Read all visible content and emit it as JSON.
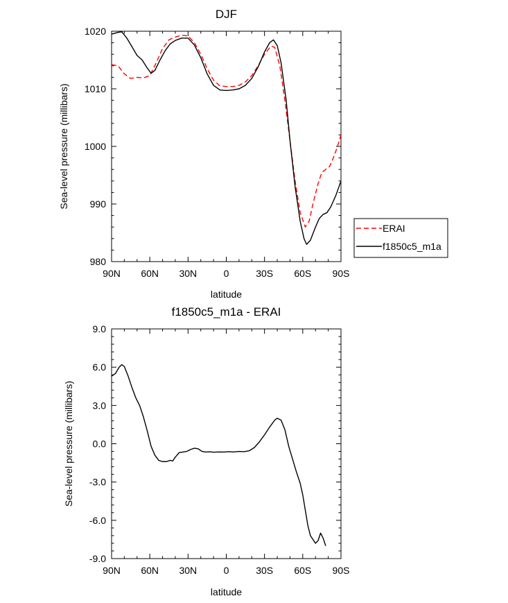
{
  "chart_data": [
    {
      "type": "line",
      "title": "DJF",
      "xlabel": "latitude",
      "ylabel": "Sea-level pressure (millibars)",
      "xlim": [
        90,
        -90
      ],
      "ylim": [
        980,
        1020
      ],
      "x_ticks": [
        {
          "value": 90,
          "label": "90N"
        },
        {
          "value": 60,
          "label": "60N"
        },
        {
          "value": 30,
          "label": "30N"
        },
        {
          "value": 0,
          "label": "0"
        },
        {
          "value": -30,
          "label": "30S"
        },
        {
          "value": -60,
          "label": "60S"
        },
        {
          "value": -90,
          "label": "90S"
        }
      ],
      "y_ticks": [
        {
          "value": 1020,
          "label": "1020"
        },
        {
          "value": 1010,
          "label": "1010"
        },
        {
          "value": 1000,
          "label": "1000"
        },
        {
          "value": 990,
          "label": "990"
        },
        {
          "value": 980,
          "label": "980"
        }
      ],
      "legend_position": "right",
      "series": [
        {
          "name": "ERAI",
          "color": "#ff0000",
          "dash": "dashed",
          "points": [
            [
              90,
              1014.2
            ],
            [
              85,
              1014
            ],
            [
              80,
              1012.6
            ],
            [
              75,
              1011.8
            ],
            [
              70,
              1012
            ],
            [
              65,
              1011.9
            ],
            [
              60,
              1012.3
            ],
            [
              55,
              1014.5
            ],
            [
              50,
              1017
            ],
            [
              45,
              1018.5
            ],
            [
              40,
              1019
            ],
            [
              35,
              1019.3
            ],
            [
              30,
              1019.2
            ],
            [
              25,
              1018
            ],
            [
              20,
              1016
            ],
            [
              15,
              1013.5
            ],
            [
              10,
              1011.5
            ],
            [
              5,
              1010.5
            ],
            [
              0,
              1010.4
            ],
            [
              -5,
              1010.4
            ],
            [
              -10,
              1010.6
            ],
            [
              -15,
              1011.2
            ],
            [
              -20,
              1012.3
            ],
            [
              -25,
              1014
            ],
            [
              -30,
              1016
            ],
            [
              -35,
              1017.4
            ],
            [
              -38,
              1017.2
            ],
            [
              -42,
              1014
            ],
            [
              -46,
              1008
            ],
            [
              -50,
              1001
            ],
            [
              -54,
              994
            ],
            [
              -58,
              988.5
            ],
            [
              -62,
              986
            ],
            [
              -65,
              987
            ],
            [
              -68,
              990
            ],
            [
              -72,
              993.5
            ],
            [
              -75,
              995.5
            ],
            [
              -78,
              996
            ],
            [
              -81,
              996.5
            ],
            [
              -84,
              998
            ],
            [
              -87,
              999.8
            ],
            [
              -90,
              1002
            ]
          ]
        },
        {
          "name": "f1850c5_m1a",
          "color": "#000000",
          "dash": "solid",
          "points": [
            [
              90,
              1019.5
            ],
            [
              85,
              1019.8
            ],
            [
              82,
              1019.9
            ],
            [
              78,
              1018.8
            ],
            [
              74,
              1017.3
            ],
            [
              70,
              1015.8
            ],
            [
              66,
              1015
            ],
            [
              62,
              1013.6
            ],
            [
              59,
              1012.7
            ],
            [
              56,
              1013.2
            ],
            [
              52,
              1015
            ],
            [
              48,
              1016.6
            ],
            [
              44,
              1017.8
            ],
            [
              40,
              1018.4
            ],
            [
              35,
              1018.8
            ],
            [
              30,
              1018.8
            ],
            [
              25,
              1017.6
            ],
            [
              20,
              1015.4
            ],
            [
              15,
              1012.6
            ],
            [
              10,
              1010.6
            ],
            [
              5,
              1009.8
            ],
            [
              0,
              1009.7
            ],
            [
              -5,
              1009.8
            ],
            [
              -10,
              1010
            ],
            [
              -15,
              1010.6
            ],
            [
              -20,
              1011.8
            ],
            [
              -25,
              1013.8
            ],
            [
              -30,
              1016.4
            ],
            [
              -34,
              1018
            ],
            [
              -37,
              1018.5
            ],
            [
              -40,
              1017.5
            ],
            [
              -43,
              1014.5
            ],
            [
              -47,
              1008
            ],
            [
              -50,
              1001
            ],
            [
              -54,
              993
            ],
            [
              -58,
              987
            ],
            [
              -61,
              984
            ],
            [
              -63,
              983
            ],
            [
              -66,
              983.7
            ],
            [
              -70,
              986
            ],
            [
              -73,
              987.5
            ],
            [
              -76,
              988.2
            ],
            [
              -79,
              988.5
            ],
            [
              -82,
              989.5
            ],
            [
              -86,
              991.5
            ],
            [
              -90,
              994
            ]
          ]
        }
      ]
    },
    {
      "type": "line",
      "title": "f1850c5_m1a - ERAI",
      "xlabel": "latitude",
      "ylabel": "Sea-level pressure (millibars)",
      "xlim": [
        90,
        -90
      ],
      "ylim": [
        -9,
        9
      ],
      "x_ticks": [
        {
          "value": 90,
          "label": "90N"
        },
        {
          "value": 60,
          "label": "60N"
        },
        {
          "value": 30,
          "label": "30N"
        },
        {
          "value": 0,
          "label": "0"
        },
        {
          "value": -30,
          "label": "30S"
        },
        {
          "value": -60,
          "label": "60S"
        },
        {
          "value": -90,
          "label": "90S"
        }
      ],
      "y_ticks": [
        {
          "value": 9,
          "label": "9.0"
        },
        {
          "value": 6,
          "label": "6.0"
        },
        {
          "value": 3,
          "label": "3.0"
        },
        {
          "value": 0,
          "label": "0.0"
        },
        {
          "value": -3,
          "label": "-3.0"
        },
        {
          "value": -6,
          "label": "-6.0"
        },
        {
          "value": -9,
          "label": "-9.0"
        }
      ],
      "series": [
        {
          "color": "#000000",
          "dash": "solid",
          "points": [
            [
              90,
              5.3
            ],
            [
              87,
              5.5
            ],
            [
              84,
              6
            ],
            [
              82,
              6.2
            ],
            [
              80,
              6.05
            ],
            [
              77,
              5.3
            ],
            [
              74,
              4.4
            ],
            [
              71,
              3.6
            ],
            [
              68,
              3
            ],
            [
              65,
              2.1
            ],
            [
              62,
              1
            ],
            [
              59,
              -0.2
            ],
            [
              56,
              -0.9
            ],
            [
              53,
              -1.3
            ],
            [
              50,
              -1.4
            ],
            [
              47,
              -1.4
            ],
            [
              44,
              -1.3
            ],
            [
              42,
              -1.35
            ],
            [
              40,
              -1.05
            ],
            [
              37,
              -0.7
            ],
            [
              34,
              -0.65
            ],
            [
              31,
              -0.6
            ],
            [
              28,
              -0.45
            ],
            [
              25,
              -0.35
            ],
            [
              22,
              -0.4
            ],
            [
              19,
              -0.6
            ],
            [
              16,
              -0.65
            ],
            [
              13,
              -0.63
            ],
            [
              10,
              -0.66
            ],
            [
              6,
              -0.64
            ],
            [
              2,
              -0.65
            ],
            [
              -2,
              -0.62
            ],
            [
              -6,
              -0.64
            ],
            [
              -10,
              -0.6
            ],
            [
              -14,
              -0.62
            ],
            [
              -18,
              -0.55
            ],
            [
              -22,
              -0.3
            ],
            [
              -26,
              0.15
            ],
            [
              -30,
              0.7
            ],
            [
              -34,
              1.3
            ],
            [
              -38,
              1.85
            ],
            [
              -40,
              2
            ],
            [
              -43,
              1.85
            ],
            [
              -46,
              1.1
            ],
            [
              -49,
              -0.2
            ],
            [
              -52,
              -1.2
            ],
            [
              -55,
              -2.2
            ],
            [
              -58,
              -3.1
            ],
            [
              -60,
              -4
            ],
            [
              -62,
              -5.2
            ],
            [
              -64,
              -6.4
            ],
            [
              -66,
              -7.2
            ],
            [
              -68,
              -7.5
            ],
            [
              -70,
              -7.8
            ],
            [
              -72,
              -7.6
            ],
            [
              -74,
              -7
            ],
            [
              -76,
              -7.4
            ],
            [
              -78,
              -8
            ]
          ]
        }
      ]
    }
  ]
}
